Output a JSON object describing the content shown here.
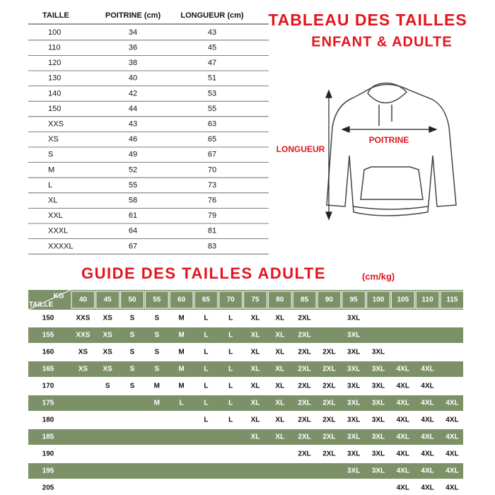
{
  "size_table": {
    "headers": [
      "TAILLE",
      "POITRINE (cm)",
      "LONGUEUR (cm)"
    ],
    "rows": [
      [
        "100",
        34,
        43
      ],
      [
        "110",
        36,
        45
      ],
      [
        "120",
        38,
        47
      ],
      [
        "130",
        40,
        51
      ],
      [
        "140",
        42,
        53
      ],
      [
        "150",
        44,
        55
      ],
      [
        "XXS",
        43,
        63
      ],
      [
        "XS",
        46,
        65
      ],
      [
        "S",
        49,
        67
      ],
      [
        "M",
        52,
        70
      ],
      [
        "L",
        55,
        73
      ],
      [
        "XL",
        58,
        76
      ],
      [
        "XXL",
        61,
        79
      ],
      [
        "XXXL",
        64,
        81
      ],
      [
        "XXXXL",
        67,
        83
      ]
    ]
  },
  "title": {
    "line1": "TABLEAU DES TAILLES",
    "line2": "ENFANT & ADULTE"
  },
  "diagram": {
    "length_label": "LONGUEUR",
    "chest_label": "POITRINE"
  },
  "guide": {
    "title": "GUIDE DES TAILLES ADULTE",
    "unit": "(cm/kg)",
    "corner_weight": "KG",
    "corner_height": "TAILLE",
    "weights": [
      40,
      45,
      50,
      55,
      60,
      65,
      70,
      75,
      80,
      85,
      90,
      95,
      100,
      105,
      110,
      115
    ],
    "rows": [
      {
        "height": 150,
        "sizes": [
          "XXS",
          "XS",
          "S",
          "S",
          "M",
          "L",
          "L",
          "XL",
          "XL",
          "2XL",
          null,
          "3XL",
          null,
          null,
          null,
          null
        ]
      },
      {
        "height": 155,
        "sizes": [
          "XXS",
          "XS",
          "S",
          "S",
          "M",
          "L",
          "L",
          "XL",
          "XL",
          "2XL",
          null,
          "3XL",
          null,
          null,
          null,
          null
        ]
      },
      {
        "height": 160,
        "sizes": [
          "XS",
          "XS",
          "S",
          "S",
          "M",
          "L",
          "L",
          "XL",
          "XL",
          "2XL",
          "2XL",
          "3XL",
          "3XL",
          null,
          null,
          null
        ]
      },
      {
        "height": 165,
        "sizes": [
          "XS",
          "XS",
          "S",
          "S",
          "M",
          "L",
          "L",
          "XL",
          "XL",
          "2XL",
          "2XL",
          "3XL",
          "3XL",
          "4XL",
          "4XL",
          null
        ]
      },
      {
        "height": 170,
        "sizes": [
          null,
          "S",
          "S",
          "M",
          "M",
          "L",
          "L",
          "XL",
          "XL",
          "2XL",
          "2XL",
          "3XL",
          "3XL",
          "4XL",
          "4XL",
          null
        ]
      },
      {
        "height": 175,
        "sizes": [
          null,
          null,
          null,
          "M",
          "L",
          "L",
          "L",
          "XL",
          "XL",
          "2XL",
          "2XL",
          "3XL",
          "3XL",
          "4XL",
          "4XL",
          "4XL"
        ]
      },
      {
        "height": 180,
        "sizes": [
          null,
          null,
          null,
          null,
          null,
          "L",
          "L",
          "XL",
          "XL",
          "2XL",
          "2XL",
          "3XL",
          "3XL",
          "4XL",
          "4XL",
          "4XL"
        ]
      },
      {
        "height": 185,
        "sizes": [
          null,
          null,
          null,
          null,
          null,
          null,
          null,
          "XL",
          "XL",
          "2XL",
          "2XL",
          "3XL",
          "3XL",
          "4XL",
          "4XL",
          "4XL"
        ]
      },
      {
        "height": 190,
        "sizes": [
          null,
          null,
          null,
          null,
          null,
          null,
          null,
          null,
          null,
          "2XL",
          "2XL",
          "3XL",
          "3XL",
          "4XL",
          "4XL",
          "4XL"
        ]
      },
      {
        "height": 195,
        "sizes": [
          null,
          null,
          null,
          null,
          null,
          null,
          null,
          null,
          null,
          null,
          null,
          "3XL",
          "3XL",
          "4XL",
          "4XL",
          "4XL"
        ]
      },
      {
        "height": 205,
        "sizes": [
          null,
          null,
          null,
          null,
          null,
          null,
          null,
          null,
          null,
          null,
          null,
          null,
          null,
          "4XL",
          "4XL",
          "4XL"
        ]
      }
    ]
  }
}
